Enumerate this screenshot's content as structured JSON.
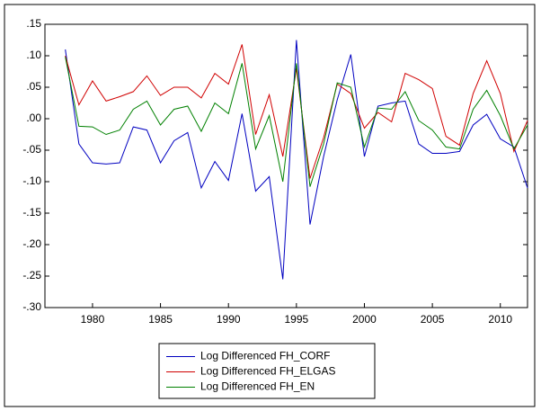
{
  "chart_data": {
    "type": "line",
    "x": [
      1978,
      1979,
      1980,
      1981,
      1982,
      1983,
      1984,
      1985,
      1986,
      1987,
      1988,
      1989,
      1990,
      1991,
      1992,
      1993,
      1994,
      1995,
      1996,
      1997,
      1998,
      1999,
      2000,
      2001,
      2002,
      2003,
      2004,
      2005,
      2006,
      2007,
      2008,
      2009,
      2010,
      2011,
      2012
    ],
    "series": [
      {
        "name": "Log Differenced FH_CORF",
        "color": "#0000c0",
        "values": [
          0.11,
          -0.04,
          -0.07,
          -0.072,
          -0.07,
          -0.013,
          -0.018,
          -0.07,
          -0.035,
          -0.022,
          -0.11,
          -0.068,
          -0.098,
          0.008,
          -0.115,
          -0.092,
          -0.255,
          0.125,
          -0.168,
          -0.06,
          0.03,
          0.102,
          -0.06,
          0.02,
          0.025,
          0.028,
          -0.04,
          -0.055,
          -0.055,
          -0.052,
          -0.01,
          0.007,
          -0.032,
          -0.045,
          -0.11
        ]
      },
      {
        "name": "Log Differenced FH_ELGAS",
        "color": "#d00000",
        "values": [
          0.1,
          0.022,
          0.06,
          0.028,
          0.035,
          0.043,
          0.068,
          0.037,
          0.05,
          0.05,
          0.033,
          0.072,
          0.055,
          0.118,
          -0.025,
          0.038,
          -0.06,
          0.08,
          -0.095,
          -0.03,
          0.055,
          0.04,
          -0.015,
          0.01,
          -0.005,
          0.072,
          0.062,
          0.048,
          -0.028,
          -0.042,
          0.04,
          0.092,
          0.04,
          -0.052,
          -0.003
        ]
      },
      {
        "name": "Log Differenced FH_EN",
        "color": "#008000",
        "values": [
          0.098,
          -0.012,
          -0.013,
          -0.025,
          -0.018,
          0.015,
          0.028,
          -0.01,
          0.015,
          0.02,
          -0.02,
          0.025,
          0.008,
          0.088,
          -0.048,
          0.005,
          -0.1,
          0.088,
          -0.108,
          -0.04,
          0.057,
          0.05,
          -0.045,
          0.017,
          0.015,
          0.043,
          -0.003,
          -0.018,
          -0.045,
          -0.048,
          0.015,
          0.045,
          0.005,
          -0.048,
          -0.01
        ]
      }
    ],
    "xlim": [
      1976.5,
      2012
    ],
    "xticks": [
      1980,
      1985,
      1990,
      1995,
      2000,
      2005,
      2010
    ],
    "ylim": [
      -0.3,
      0.15
    ],
    "yticks": [
      {
        "value": 0.15,
        "label": ".15"
      },
      {
        "value": 0.1,
        "label": ".10"
      },
      {
        "value": 0.05,
        "label": ".05"
      },
      {
        "value": 0,
        "label": ".00"
      },
      {
        "value": -0.05,
        "label": "-.05"
      },
      {
        "value": -0.1,
        "label": "-.10"
      },
      {
        "value": -0.15,
        "label": "-.15"
      },
      {
        "value": -0.2,
        "label": "-.20"
      },
      {
        "value": -0.25,
        "label": "-.25"
      },
      {
        "value": -0.3,
        "label": "-.30"
      }
    ],
    "grid": false,
    "legend": "bottom"
  }
}
